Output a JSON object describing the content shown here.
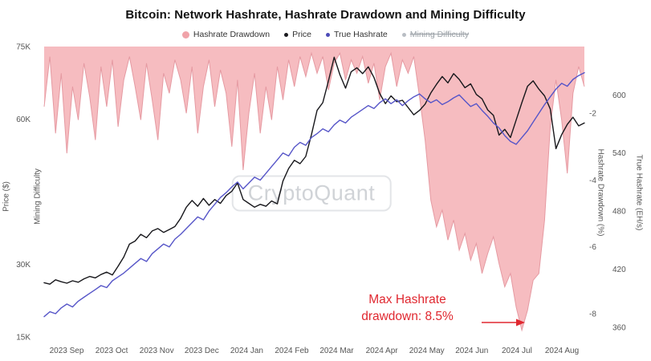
{
  "chart": {
    "title": "Bitcoin: Network Hashrate, Hashrate Drawdown and Mining Difficulty",
    "watermark": "CryptoQuant"
  },
  "legend": {
    "items": [
      {
        "label": "Hashrate Drawdown",
        "color": "#f0a3a9",
        "disabled": false
      },
      {
        "label": "Price",
        "color": "#1b1b1f",
        "disabled": false
      },
      {
        "label": "True Hashrate",
        "color": "#4c4bb8",
        "disabled": false
      },
      {
        "label": "Mining Difficulty",
        "color": "#9aa0a6",
        "disabled": true
      }
    ]
  },
  "annotation": {
    "line1": "Max Hashrate",
    "line2": "drawdown: 8.5%",
    "color": "#e02830"
  },
  "chart_data": {
    "type": "line",
    "title": "Bitcoin: Network Hashrate, Hashrate Drawdown and Mining Difficulty",
    "x_tick_labels": [
      "2023 Sep",
      "2023 Oct",
      "2023 Nov",
      "2023 Dec",
      "2024 Jan",
      "2024 Feb",
      "2024 Mar",
      "2024 Apr",
      "2024 May",
      "2024 Jun",
      "2024 Jul",
      "2024 Aug"
    ],
    "axes": {
      "price": {
        "label": "Price ($)",
        "side": "left",
        "domain": [
          15,
          75
        ],
        "ticks": [
          {
            "label": "75K",
            "value": 75
          },
          {
            "label": "60K",
            "value": 60
          },
          {
            "label": "30K",
            "value": 30
          },
          {
            "label": "15K",
            "value": 15
          }
        ]
      },
      "difficulty": {
        "label": "Mining Difficulty",
        "side": "left"
      },
      "drawdown": {
        "label": "Hashrate Drawdown (%)",
        "side": "right",
        "domain": [
          -8.7,
          0
        ],
        "ticks": [
          {
            "label": "-2",
            "value": -2
          },
          {
            "label": "-4",
            "value": -4
          },
          {
            "label": "-6",
            "value": -6
          },
          {
            "label": "-8",
            "value": -8
          }
        ]
      },
      "hashrate": {
        "label": "True Hashrate (EH/s)",
        "side": "right",
        "domain": [
          350,
          650
        ],
        "ticks": [
          {
            "label": "600",
            "value": 600
          },
          {
            "label": "540",
            "value": 540
          },
          {
            "label": "480",
            "value": 480
          },
          {
            "label": "420",
            "value": 420
          },
          {
            "label": "360",
            "value": 360
          }
        ]
      }
    },
    "series": [
      {
        "name": "Hashrate Drawdown",
        "type": "area",
        "axis": "drawdown",
        "color": "#f5b5b9",
        "edge_color": "#e59aa2",
        "visible": true,
        "values": [
          -1.8,
          -0.3,
          -2.6,
          -0.8,
          -3.2,
          -1.2,
          -2.2,
          -0.5,
          -1.5,
          -2.8,
          -0.6,
          -1.8,
          -0.4,
          -2.4,
          -1.0,
          -0.3,
          -1.2,
          -2.2,
          -0.5,
          -1.6,
          -2.8,
          -0.8,
          -1.4,
          -0.4,
          -1.0,
          -2.0,
          -0.6,
          -2.6,
          -1.2,
          -0.4,
          -1.8,
          -0.7,
          -1.4,
          -3.0,
          -1.0,
          -3.7,
          -2.0,
          -0.8,
          -2.6,
          -1.2,
          -2.2,
          -0.6,
          -1.6,
          -0.4,
          -1.2,
          -0.3,
          -0.9,
          -0.2,
          -0.8,
          -0.3,
          -1.3,
          -0.5,
          -0.2,
          -1.0,
          -0.4,
          -0.8,
          -0.3,
          -1.1,
          -0.5,
          -1.6,
          -0.6,
          -0.2,
          -1.2,
          -0.4,
          -0.8,
          -0.3,
          -1.5,
          -2.8,
          -4.6,
          -5.4,
          -4.9,
          -5.8,
          -5.2,
          -6.1,
          -5.6,
          -6.4,
          -5.9,
          -6.8,
          -6.2,
          -5.7,
          -6.5,
          -7.2,
          -6.8,
          -7.8,
          -8.5,
          -7.9,
          -7.0,
          -6.8,
          -5.2,
          -2.4,
          -1.0,
          -2.2,
          -3.8,
          -1.4,
          -0.6,
          -1.2
        ]
      },
      {
        "name": "Price",
        "type": "line",
        "axis": "price",
        "color": "#17171b",
        "unit": "thousand USD",
        "visible": true,
        "values": [
          26.2,
          25.9,
          26.8,
          26.4,
          26.1,
          26.6,
          26.3,
          27.0,
          27.5,
          27.2,
          27.9,
          28.4,
          27.8,
          29.6,
          31.5,
          34.2,
          34.8,
          36.2,
          35.5,
          36.9,
          37.4,
          36.6,
          37.2,
          37.8,
          39.5,
          41.8,
          43.2,
          42.0,
          43.6,
          42.2,
          43.4,
          42.6,
          44.2,
          45.1,
          46.8,
          43.4,
          42.6,
          41.8,
          42.4,
          42.0,
          43.1,
          42.5,
          47.2,
          49.8,
          51.5,
          50.8,
          52.3,
          56.8,
          61.8,
          63.4,
          67.9,
          72.8,
          69.2,
          66.4,
          69.8,
          70.6,
          69.4,
          70.8,
          68.6,
          65.3,
          63.2,
          64.8,
          63.6,
          63.9,
          62.4,
          60.9,
          61.8,
          63.1,
          65.4,
          67.2,
          68.8,
          67.5,
          69.4,
          68.2,
          66.5,
          67.3,
          65.1,
          64.2,
          61.9,
          60.8,
          56.7,
          57.9,
          56.2,
          59.8,
          63.4,
          66.8,
          67.9,
          66.2,
          64.8,
          62.1,
          53.9,
          56.8,
          58.9,
          60.4,
          58.6,
          59.2
        ]
      },
      {
        "name": "True Hashrate",
        "type": "line",
        "axis": "hashrate",
        "color": "#5655c8",
        "unit": "EH/s",
        "visible": true,
        "values": [
          371,
          376,
          374,
          380,
          384,
          381,
          387,
          391,
          395,
          399,
          403,
          401,
          408,
          412,
          416,
          421,
          426,
          431,
          428,
          436,
          441,
          446,
          443,
          451,
          456,
          462,
          468,
          474,
          471,
          480,
          487,
          494,
          499,
          505,
          510,
          503,
          509,
          515,
          512,
          519,
          526,
          533,
          540,
          537,
          546,
          551,
          548,
          556,
          560,
          565,
          562,
          569,
          574,
          571,
          577,
          581,
          585,
          589,
          586,
          592,
          596,
          591,
          595,
          589,
          594,
          598,
          601,
          596,
          592,
          595,
          590,
          593,
          597,
          600,
          594,
          588,
          591,
          584,
          578,
          571,
          566,
          558,
          552,
          549,
          556,
          563,
          572,
          581,
          590,
          598,
          606,
          612,
          609,
          616,
          620,
          623
        ]
      },
      {
        "name": "Mining Difficulty",
        "type": "line",
        "axis": "difficulty",
        "color": "#9aa0a6",
        "visible": false,
        "values": []
      }
    ],
    "annotation": {
      "text": "Max Hashrate drawdown: 8.5%",
      "value_pct": -8.5
    },
    "grid": false,
    "legend_position": "top"
  }
}
